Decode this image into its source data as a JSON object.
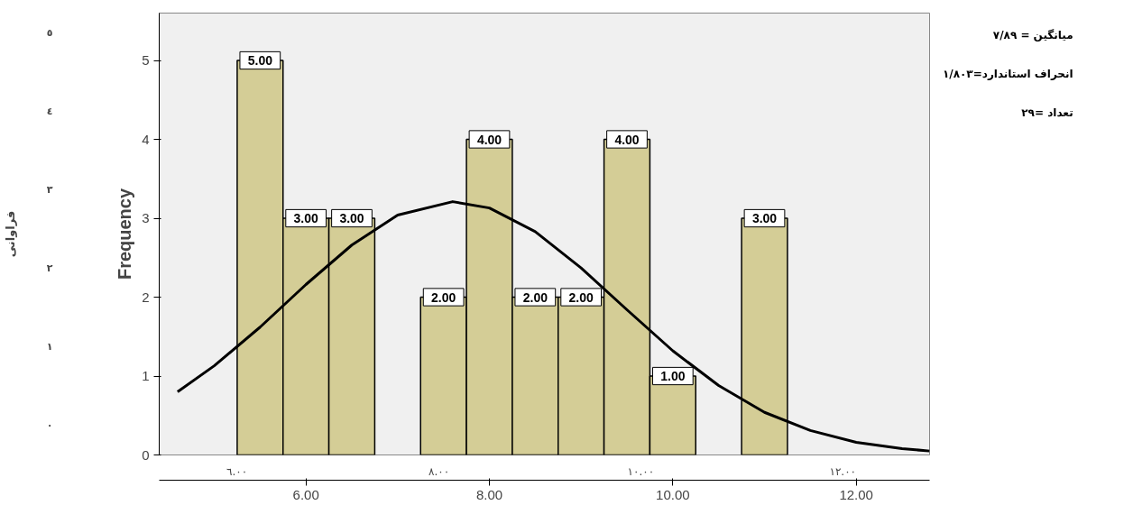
{
  "chart_data": {
    "type": "histogram",
    "bins": [
      5.25,
      5.75,
      6.25,
      6.75,
      7.25,
      7.75,
      8.25,
      8.75,
      9.25,
      9.75,
      10.25,
      10.75,
      11.25
    ],
    "values": [
      5,
      3,
      3,
      0,
      2,
      4,
      2,
      2,
      4,
      1,
      0,
      3
    ],
    "value_labels": [
      "5.00",
      "3.00",
      "3.00",
      null,
      "2.00",
      "4.00",
      "2.00",
      "2.00",
      "4.00",
      "1.00",
      null,
      "3.00"
    ],
    "color": "#d4cd96",
    "series": [
      {
        "type": "line",
        "color": "#000000",
        "x": [
          4.6,
          5.0,
          5.5,
          6.0,
          6.5,
          7.0,
          7.6,
          8.0,
          8.5,
          9.0,
          9.5,
          10.0,
          10.5,
          11.0,
          11.5,
          12.0,
          12.5,
          12.8
        ],
        "values": [
          0.8,
          1.13,
          1.62,
          2.16,
          2.66,
          3.04,
          3.21,
          3.13,
          2.83,
          2.37,
          1.84,
          1.32,
          0.88,
          0.54,
          0.31,
          0.16,
          0.08,
          0.05
        ]
      }
    ],
    "xlim": [
      4.4,
      12.8
    ],
    "xticks": [
      {
        "value": 6,
        "label": "6.00"
      },
      {
        "value": 8,
        "label": "8.00"
      },
      {
        "value": 10,
        "label": "10.00"
      },
      {
        "value": 12,
        "label": "12.00"
      }
    ],
    "x2lim": [
      5.23,
      12.86
    ],
    "x2ticks": [
      {
        "value": 6,
        "label": "٦.٠٠"
      },
      {
        "value": 8,
        "label": "٨.٠٠"
      },
      {
        "value": 10,
        "label": "١٠.٠٠"
      },
      {
        "value": 12,
        "label": "١٢.٠٠"
      }
    ],
    "ylim": [
      0,
      5.6
    ],
    "yticks": [
      0,
      1,
      2,
      3,
      4,
      5
    ],
    "y2lim": [
      -0.38,
      5.25
    ],
    "y2ticks": [
      {
        "value": 0,
        "label": "٠"
      },
      {
        "value": 1,
        "label": "١"
      },
      {
        "value": 2,
        "label": "٢"
      },
      {
        "value": 3,
        "label": "٣"
      },
      {
        "value": 4,
        "label": "٤"
      },
      {
        "value": 5,
        "label": "٥"
      }
    ],
    "ylabel": "Frequency",
    "y2label": "فراوانی",
    "annotations": [
      "میانگین = ۷/۸۹",
      "انحراف استاندارد=۱/۸۰۳",
      "تعداد =۲۹"
    ],
    "grid": false
  }
}
